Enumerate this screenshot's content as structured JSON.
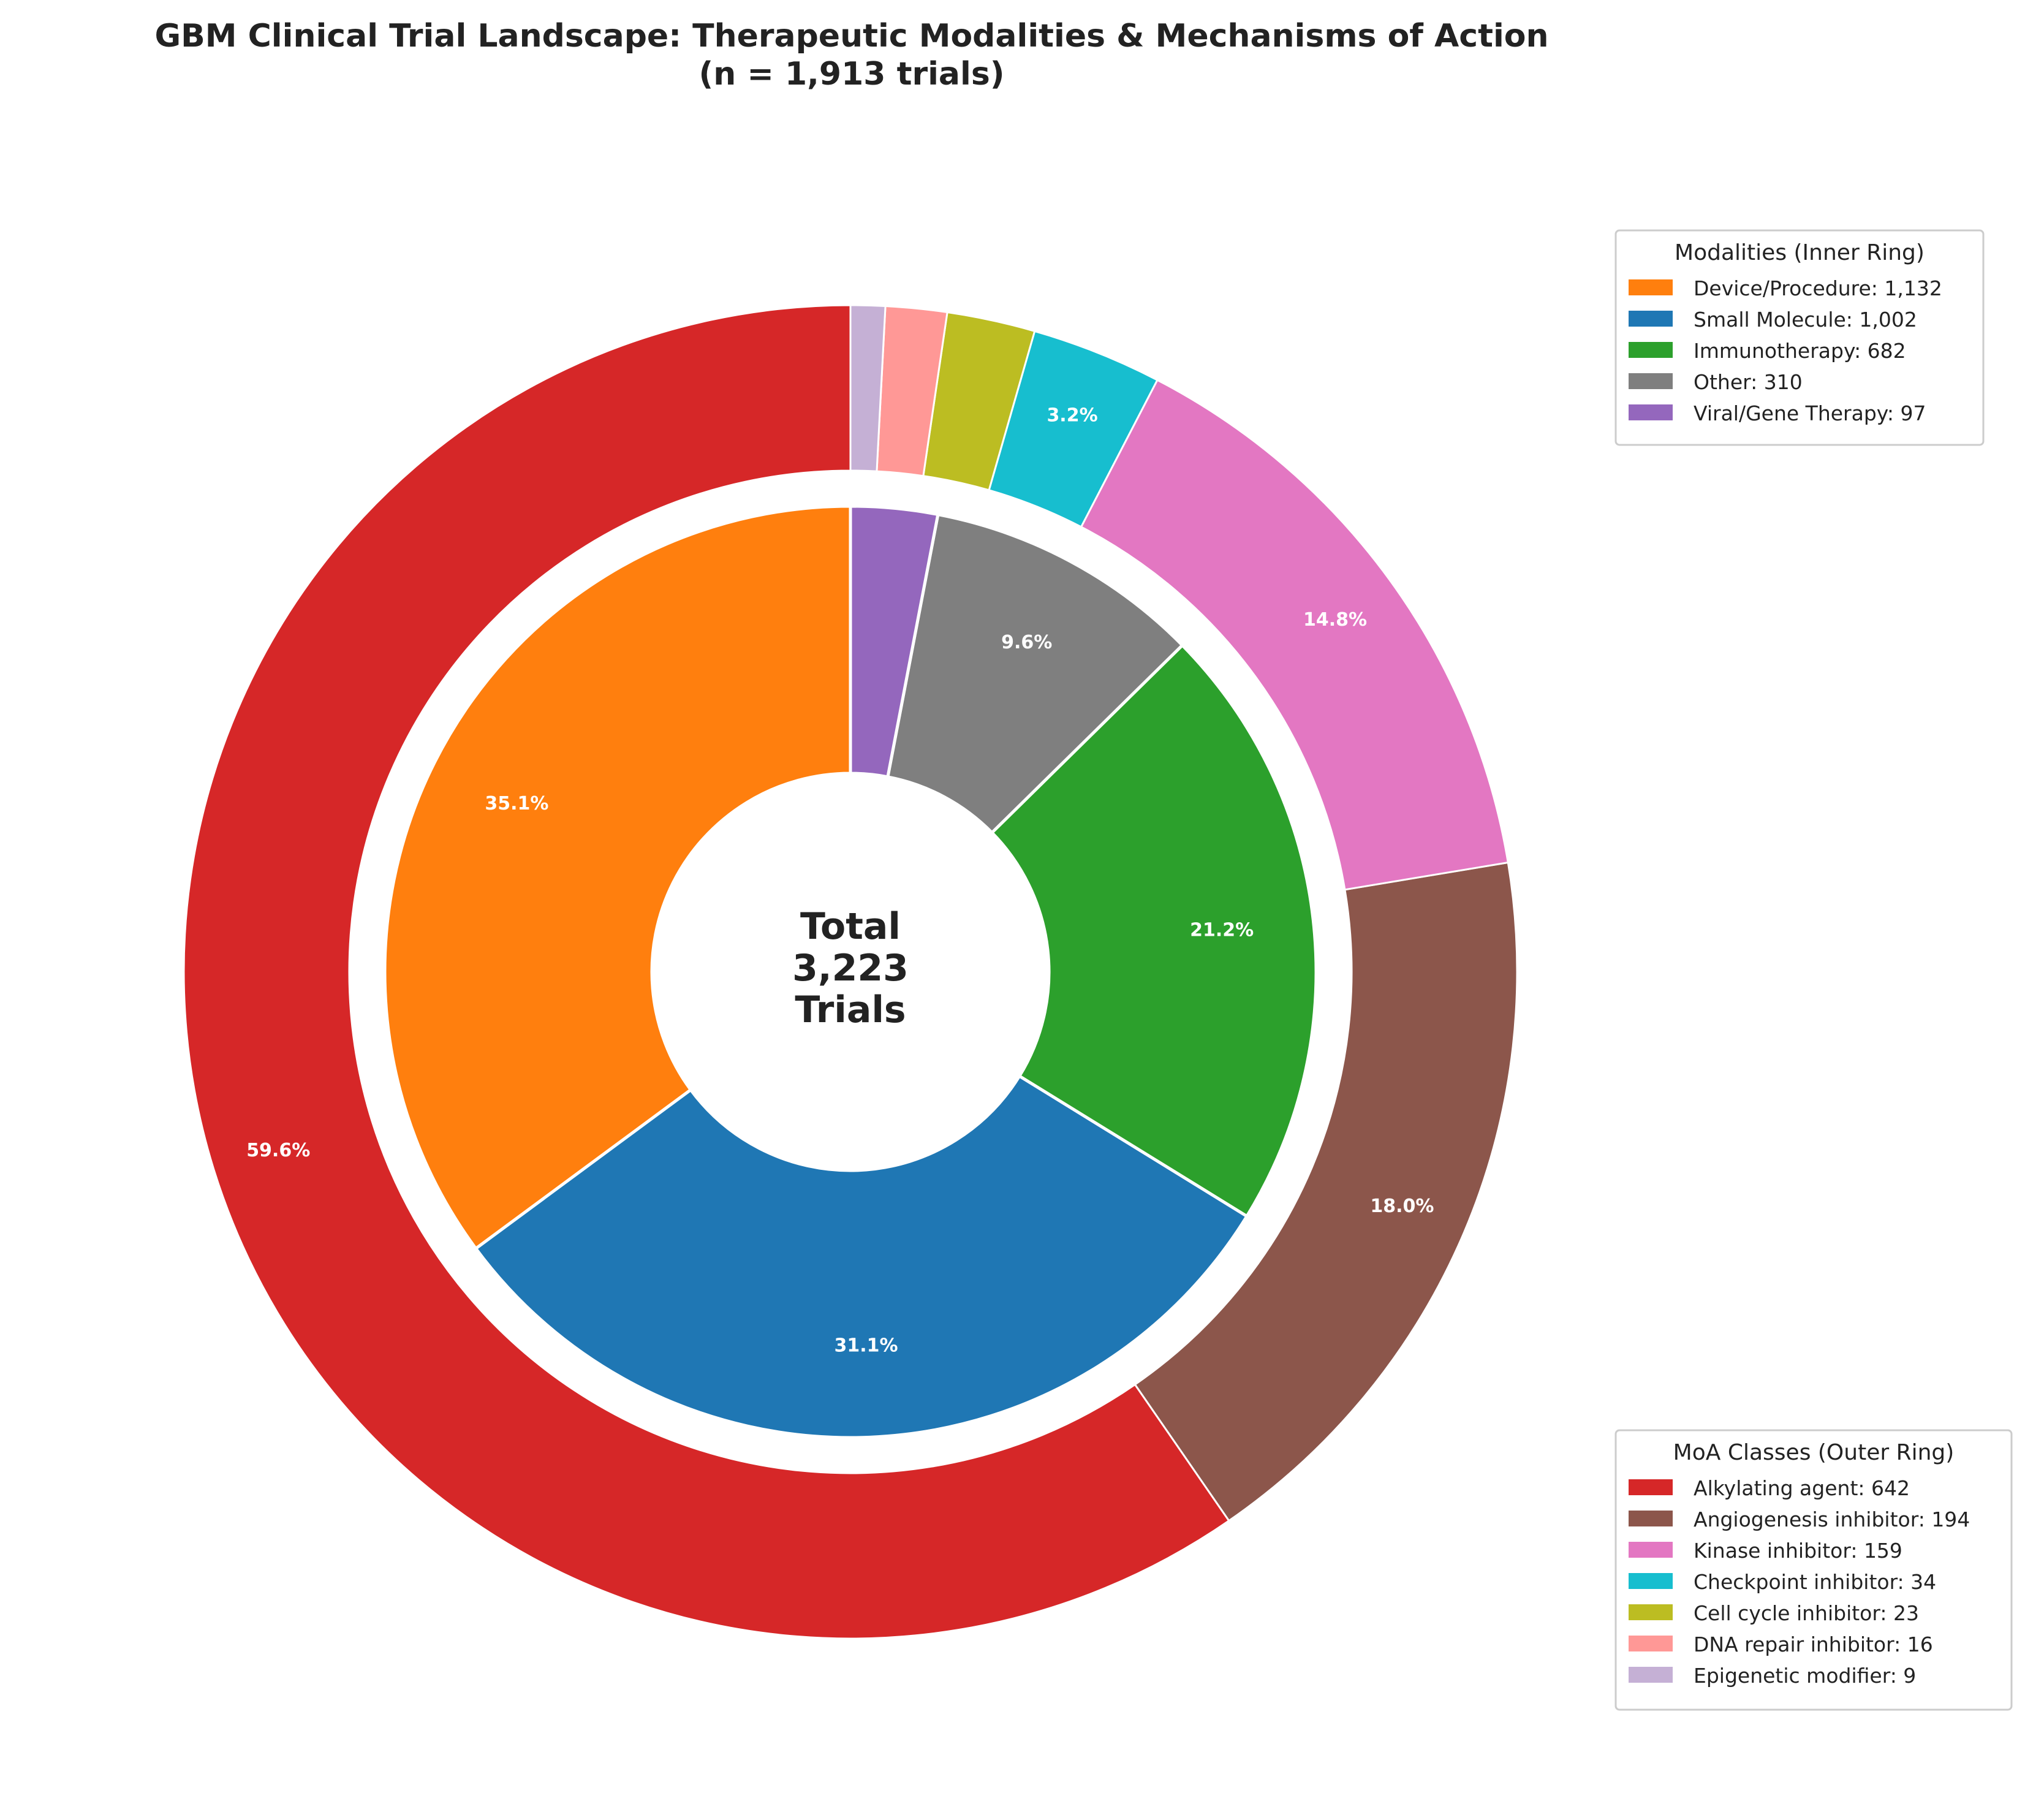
{
  "chart_data": {
    "type": "pie",
    "title_line1": "GBM Clinical Trial Landscape: Therapeutic Modalities & Mechanisms of Action",
    "title_line2": "(n = 1,913 trials)",
    "center_label": [
      "Total",
      "3,223",
      "Trials"
    ],
    "inner_ring": {
      "legend_title": "Modalities (Inner Ring)",
      "slices": [
        {
          "name": "Device/Procedure",
          "value": 1132,
          "legend": "Device/Procedure: 1,132",
          "pct_label": "35.1%",
          "color": "#ff7f0e"
        },
        {
          "name": "Small Molecule",
          "value": 1002,
          "legend": "Small Molecule: 1,002",
          "pct_label": "31.1%",
          "color": "#1f77b4"
        },
        {
          "name": "Immunotherapy",
          "value": 682,
          "legend": "Immunotherapy: 682",
          "pct_label": "21.2%",
          "color": "#2ca02c"
        },
        {
          "name": "Other",
          "value": 310,
          "legend": "Other: 310",
          "pct_label": "9.6%",
          "color": "#7f7f7f"
        },
        {
          "name": "Viral/Gene Therapy",
          "value": 97,
          "legend": "Viral/Gene Therapy: 97",
          "pct_label": "",
          "color": "#9467bd"
        }
      ]
    },
    "outer_ring": {
      "legend_title": "MoA Classes (Outer Ring)",
      "slices": [
        {
          "name": "Alkylating agent",
          "value": 642,
          "legend": "Alkylating agent: 642",
          "pct_label": "59.6%",
          "color": "#d62728"
        },
        {
          "name": "Angiogenesis inhibitor",
          "value": 194,
          "legend": "Angiogenesis inhibitor: 194",
          "pct_label": "18.0%",
          "color": "#8c564b"
        },
        {
          "name": "Kinase inhibitor",
          "value": 159,
          "legend": "Kinase inhibitor: 159",
          "pct_label": "14.8%",
          "color": "#e377c2"
        },
        {
          "name": "Checkpoint inhibitor",
          "value": 34,
          "legend": "Checkpoint inhibitor: 34",
          "pct_label": "3.2%",
          "color": "#17becf"
        },
        {
          "name": "Cell cycle inhibitor",
          "value": 23,
          "legend": "Cell cycle inhibitor: 23",
          "pct_label": "",
          "color": "#bcbd22"
        },
        {
          "name": "DNA repair inhibitor",
          "value": 16,
          "legend": "DNA repair inhibitor: 16",
          "pct_label": "",
          "color": "#ff9896"
        },
        {
          "name": "Epigenetic modifier",
          "value": 9,
          "legend": "Epigenetic modifier: 9",
          "pct_label": "",
          "color": "#c5b0d5"
        }
      ]
    },
    "direction": "counterclockwise",
    "start_angle": "top"
  }
}
